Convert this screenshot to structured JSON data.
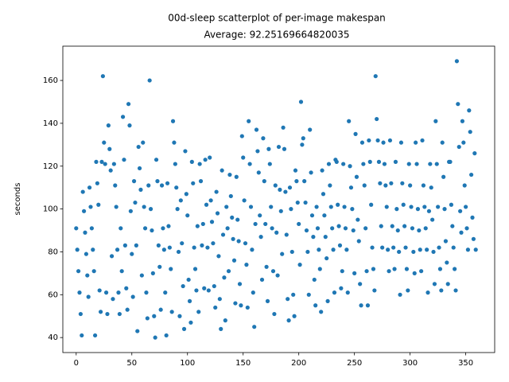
{
  "chart_data": {
    "type": "scatter",
    "title": "00d-sleep scatterplot of per-image makespan",
    "subtitle": "Average: 92.25169664820035",
    "y_label": "seconds",
    "color": "#1f77b4",
    "xlim": [
      -12,
      376
    ],
    "ylim": [
      33,
      176
    ],
    "xticks": [
      0,
      50,
      100,
      150,
      200,
      250,
      300,
      350
    ],
    "yticks": [
      40,
      60,
      80,
      100,
      120,
      140,
      160
    ],
    "x": [
      0,
      1,
      2,
      3,
      4,
      5,
      6,
      7,
      8,
      9,
      10,
      11,
      12,
      13,
      14,
      15,
      16,
      17,
      18,
      19,
      20,
      21,
      22,
      23,
      24,
      25,
      26,
      27,
      28,
      29,
      30,
      31,
      32,
      33,
      34,
      35,
      36,
      37,
      38,
      39,
      40,
      41,
      42,
      43,
      44,
      45,
      46,
      47,
      48,
      49,
      50,
      51,
      52,
      53,
      54,
      55,
      56,
      57,
      58,
      59,
      60,
      61,
      62,
      63,
      64,
      65,
      66,
      67,
      68,
      69,
      70,
      71,
      72,
      73,
      74,
      75,
      76,
      77,
      78,
      79,
      80,
      81,
      82,
      83,
      84,
      85,
      86,
      87,
      88,
      89,
      90,
      91,
      92,
      93,
      94,
      95,
      96,
      97,
      98,
      99,
      100,
      101,
      102,
      103,
      104,
      105,
      106,
      107,
      108,
      109,
      110,
      111,
      112,
      113,
      114,
      115,
      116,
      117,
      118,
      119,
      120,
      121,
      122,
      123,
      124,
      125,
      126,
      127,
      128,
      129,
      130,
      131,
      132,
      133,
      134,
      135,
      136,
      137,
      138,
      139,
      140,
      141,
      142,
      143,
      144,
      145,
      146,
      147,
      148,
      149,
      150,
      151,
      152,
      153,
      154,
      155,
      156,
      157,
      158,
      159,
      160,
      161,
      162,
      163,
      164,
      165,
      166,
      167,
      168,
      169,
      170,
      171,
      172,
      173,
      174,
      175,
      176,
      177,
      178,
      179,
      180,
      181,
      182,
      183,
      184,
      185,
      186,
      187,
      188,
      189,
      190,
      191,
      192,
      193,
      194,
      195,
      196,
      197,
      198,
      199,
      200,
      201,
      202,
      203,
      204,
      205,
      206,
      207,
      208,
      209,
      210,
      211,
      212,
      213,
      214,
      215,
      216,
      217,
      218,
      219,
      220,
      221,
      222,
      223,
      224,
      225,
      226,
      227,
      228,
      229,
      230,
      231,
      232,
      233,
      234,
      235,
      236,
      237,
      238,
      239,
      240,
      241,
      242,
      243,
      244,
      245,
      246,
      247,
      248,
      249,
      250,
      251,
      252,
      253,
      254,
      255,
      256,
      257,
      258,
      259,
      260,
      261,
      262,
      263,
      264,
      265,
      266,
      267,
      268,
      269,
      270,
      271,
      272,
      273,
      274,
      275,
      276,
      277,
      278,
      279,
      280,
      281,
      282,
      283,
      284,
      285,
      286,
      287,
      288,
      289,
      290,
      291,
      292,
      293,
      294,
      295,
      296,
      297,
      298,
      299,
      300,
      301,
      302,
      303,
      304,
      305,
      306,
      307,
      308,
      309,
      310,
      311,
      312,
      313,
      314,
      315,
      316,
      317,
      318,
      319,
      320,
      321,
      322,
      323,
      324,
      325,
      326,
      327,
      328,
      329,
      330,
      331,
      332,
      333,
      334,
      335,
      336,
      337,
      338,
      339,
      340,
      341,
      342,
      343,
      344,
      345,
      346,
      347,
      348,
      349,
      350,
      351,
      352,
      353,
      354,
      355,
      356,
      357,
      358,
      359
    ],
    "values": [
      91,
      81,
      71,
      61,
      51,
      41,
      108,
      99,
      89,
      79,
      69,
      59,
      110,
      101,
      91,
      81,
      71,
      41,
      122,
      112,
      102,
      62,
      52,
      122,
      162,
      131,
      121,
      61,
      51,
      139,
      128,
      118,
      78,
      58,
      121,
      111,
      101,
      81,
      61,
      51,
      91,
      71,
      143,
      123,
      83,
      63,
      53,
      149,
      139,
      99,
      79,
      59,
      113,
      103,
      83,
      43,
      129,
      119,
      109,
      69,
      131,
      101,
      91,
      61,
      49,
      111,
      160,
      100,
      90,
      70,
      50,
      40,
      123,
      113,
      83,
      73,
      53,
      111,
      91,
      81,
      61,
      41,
      112,
      92,
      82,
      72,
      52,
      141,
      131,
      121,
      110,
      100,
      80,
      50,
      104,
      84,
      64,
      44,
      127,
      107,
      97,
      67,
      57,
      47,
      122,
      112,
      82,
      72,
      62,
      92,
      52,
      121,
      113,
      83,
      93,
      63,
      123,
      102,
      82,
      62,
      124,
      104,
      94,
      84,
      64,
      54,
      108,
      98,
      78,
      58,
      44,
      118,
      88,
      68,
      48,
      101,
      91,
      71,
      116,
      106,
      96,
      86,
      76,
      56,
      115,
      95,
      85,
      65,
      55,
      134,
      124,
      104,
      84,
      74,
      54,
      141,
      121,
      101,
      81,
      61,
      45,
      93,
      137,
      127,
      117,
      97,
      87,
      67,
      133,
      113,
      93,
      73,
      57,
      128,
      121,
      101,
      91,
      71,
      51,
      111,
      89,
      69,
      129,
      109,
      99,
      79,
      138,
      128,
      108,
      88,
      58,
      48,
      110,
      100,
      80,
      60,
      50,
      118,
      113,
      103,
      93,
      74,
      150,
      130,
      133,
      113,
      103,
      90,
      80,
      60,
      137,
      117,
      97,
      87,
      67,
      55,
      101,
      91,
      81,
      72,
      52,
      118,
      107,
      97,
      87,
      77,
      57,
      121,
      111,
      101,
      91,
      81,
      61,
      123,
      122,
      102,
      92,
      83,
      63,
      71,
      121,
      101,
      91,
      81,
      61,
      141,
      120,
      110,
      100,
      90,
      70,
      135,
      115,
      95,
      85,
      65,
      55,
      131,
      121,
      111,
      91,
      71,
      55,
      132,
      122,
      102,
      82,
      72,
      62,
      162,
      142,
      132,
      122,
      112,
      92,
      82,
      131,
      121,
      111,
      101,
      81,
      71,
      132,
      112,
      92,
      82,
      72,
      122,
      100,
      90,
      80,
      60,
      131,
      112,
      102,
      92,
      82,
      72,
      62,
      121,
      111,
      101,
      91,
      80,
      70,
      131,
      121,
      100,
      90,
      81,
      71,
      132,
      111,
      101,
      91,
      81,
      61,
      99,
      121,
      110,
      95,
      80,
      65,
      141,
      121,
      101,
      82,
      72,
      62,
      131,
      115,
      100,
      85,
      75,
      65,
      122,
      122,
      102,
      92,
      82,
      72,
      62,
      169,
      149,
      129,
      99,
      89,
      141,
      131,
      111,
      101,
      91,
      81,
      146,
      136,
      116,
      96,
      86,
      126,
      81
    ]
  }
}
